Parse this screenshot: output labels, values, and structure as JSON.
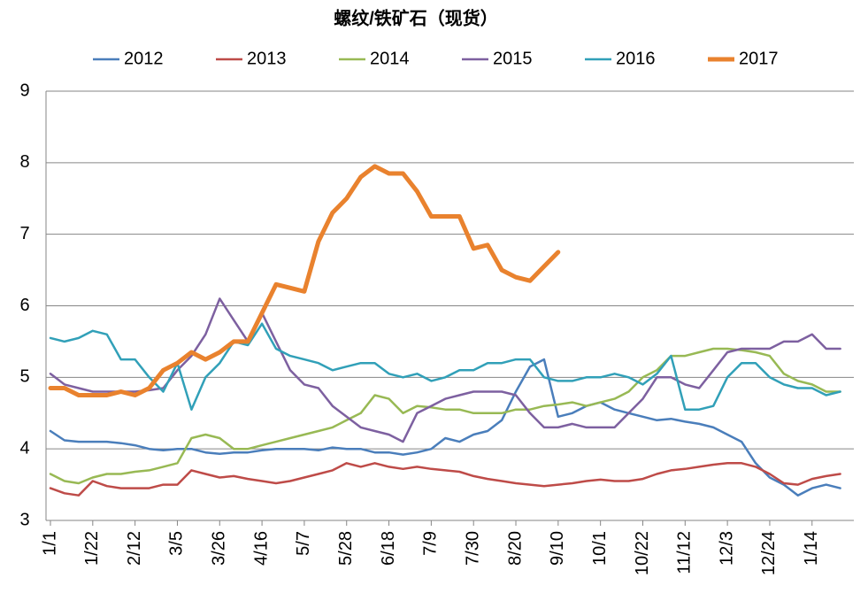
{
  "chart_data": {
    "type": "line",
    "title": "螺纹/铁矿石（现货）",
    "categories": [
      "1/1",
      null,
      null,
      "1/22",
      null,
      null,
      "2/12",
      null,
      null,
      "3/5",
      null,
      null,
      "3/26",
      null,
      null,
      "4/16",
      null,
      null,
      "5/7",
      null,
      null,
      "5/28",
      null,
      null,
      "6/18",
      null,
      null,
      "7/9",
      null,
      null,
      "7/30",
      null,
      null,
      "8/20",
      null,
      null,
      "9/10",
      null,
      null,
      "10/1",
      null,
      null,
      "10/22",
      null,
      null,
      "11/12",
      null,
      null,
      "12/3",
      null,
      null,
      "12/24",
      null,
      null,
      "1/14",
      null,
      null
    ],
    "ylim": [
      3,
      9
    ],
    "yticks": [
      3,
      4,
      5,
      6,
      7,
      8,
      9
    ],
    "grid": true,
    "series": [
      {
        "name": "2012",
        "color": "#4a7ebb",
        "width": 2.5,
        "values": [
          4.25,
          4.12,
          4.1,
          4.1,
          4.1,
          4.08,
          4.05,
          4.0,
          3.98,
          4.0,
          4.0,
          3.95,
          3.93,
          3.95,
          3.95,
          3.98,
          4.0,
          4.0,
          4.0,
          3.98,
          4.02,
          4.0,
          4.0,
          3.95,
          3.95,
          3.92,
          3.95,
          4.0,
          4.15,
          4.1,
          4.2,
          4.25,
          4.4,
          4.8,
          5.15,
          5.25,
          4.45,
          4.5,
          4.6,
          4.65,
          4.55,
          4.5,
          4.45,
          4.4,
          4.42,
          4.38,
          4.35,
          4.3,
          4.2,
          4.1,
          3.8,
          3.6,
          3.5,
          3.35,
          3.45,
          3.5,
          3.45
        ]
      },
      {
        "name": "2013",
        "color": "#be4b48",
        "width": 2.5,
        "values": [
          3.45,
          3.38,
          3.35,
          3.55,
          3.48,
          3.45,
          3.45,
          3.45,
          3.5,
          3.5,
          3.7,
          3.65,
          3.6,
          3.62,
          3.58,
          3.55,
          3.52,
          3.55,
          3.6,
          3.65,
          3.7,
          3.8,
          3.75,
          3.8,
          3.75,
          3.72,
          3.75,
          3.72,
          3.7,
          3.68,
          3.62,
          3.58,
          3.55,
          3.52,
          3.5,
          3.48,
          3.5,
          3.52,
          3.55,
          3.57,
          3.55,
          3.55,
          3.58,
          3.65,
          3.7,
          3.72,
          3.75,
          3.78,
          3.8,
          3.8,
          3.75,
          3.65,
          3.52,
          3.5,
          3.58,
          3.62,
          3.65
        ]
      },
      {
        "name": "2014",
        "color": "#98b954",
        "width": 2.5,
        "values": [
          3.65,
          3.55,
          3.52,
          3.6,
          3.65,
          3.65,
          3.68,
          3.7,
          3.75,
          3.8,
          4.15,
          4.2,
          4.15,
          4.0,
          4.0,
          4.05,
          4.1,
          4.15,
          4.2,
          4.25,
          4.3,
          4.4,
          4.5,
          4.75,
          4.7,
          4.5,
          4.6,
          4.58,
          4.55,
          4.55,
          4.5,
          4.5,
          4.5,
          4.55,
          4.55,
          4.6,
          4.62,
          4.65,
          4.6,
          4.65,
          4.7,
          4.8,
          5.0,
          5.1,
          5.3,
          5.3,
          5.35,
          5.4,
          5.4,
          5.38,
          5.35,
          5.3,
          5.05,
          4.95,
          4.9,
          4.8,
          4.8
        ]
      },
      {
        "name": "2015",
        "color": "#7d60a0",
        "width": 2.5,
        "values": [
          5.05,
          4.9,
          4.85,
          4.8,
          4.8,
          4.8,
          4.8,
          4.82,
          4.85,
          5.1,
          5.3,
          5.6,
          6.1,
          5.8,
          5.5,
          5.9,
          5.5,
          5.1,
          4.9,
          4.85,
          4.6,
          4.45,
          4.3,
          4.25,
          4.2,
          4.1,
          4.5,
          4.6,
          4.7,
          4.75,
          4.8,
          4.8,
          4.8,
          4.75,
          4.5,
          4.3,
          4.3,
          4.35,
          4.3,
          4.3,
          4.3,
          4.5,
          4.7,
          5.0,
          5.0,
          4.9,
          4.85,
          5.1,
          5.35,
          5.4,
          5.4,
          5.4,
          5.5,
          5.5,
          5.6,
          5.4,
          5.4
        ]
      },
      {
        "name": "2016",
        "color": "#31a0b8",
        "width": 2.5,
        "values": [
          5.55,
          5.5,
          5.55,
          5.65,
          5.6,
          5.25,
          5.25,
          5.0,
          4.8,
          5.2,
          4.55,
          5.0,
          5.2,
          5.5,
          5.45,
          5.75,
          5.4,
          5.3,
          5.25,
          5.2,
          5.1,
          5.15,
          5.2,
          5.2,
          5.05,
          5.0,
          5.05,
          4.95,
          5.0,
          5.1,
          5.1,
          5.2,
          5.2,
          5.25,
          5.25,
          5.0,
          4.95,
          4.95,
          5.0,
          5.0,
          5.05,
          5.0,
          4.9,
          5.05,
          5.3,
          4.55,
          4.55,
          4.6,
          5.0,
          5.2,
          5.2,
          5.0,
          4.9,
          4.85,
          4.85,
          4.75,
          4.8
        ]
      },
      {
        "name": "2017",
        "color": "#e9822e",
        "width": 5,
        "values": [
          4.85,
          4.85,
          4.75,
          4.75,
          4.75,
          4.8,
          4.75,
          4.85,
          5.1,
          5.2,
          5.35,
          5.25,
          5.35,
          5.5,
          5.5,
          5.9,
          6.3,
          6.25,
          6.2,
          6.9,
          7.3,
          7.5,
          7.8,
          7.95,
          7.85,
          7.85,
          7.6,
          7.25,
          7.25,
          7.25,
          6.8,
          6.85,
          6.5,
          6.4,
          6.35,
          6.55,
          6.75,
          null,
          null,
          null,
          null,
          null,
          null,
          null,
          null,
          null,
          null,
          null,
          null,
          null,
          null,
          null,
          null,
          null,
          null,
          null,
          null
        ]
      }
    ]
  }
}
